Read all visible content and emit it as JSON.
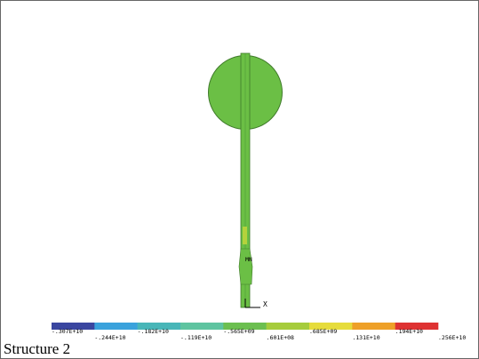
{
  "view": {
    "node_label": "MN",
    "axis_label": "X"
  },
  "legend": {
    "labels": [
      "-.307E+10",
      "-.244E+10",
      "-.182E+10",
      "-.119E+10",
      "-.565E+09",
      ".601E+08",
      ".685E+09",
      ".131E+10",
      ".194E+10",
      ".256E+10"
    ]
  },
  "caption": "Structure 2"
}
